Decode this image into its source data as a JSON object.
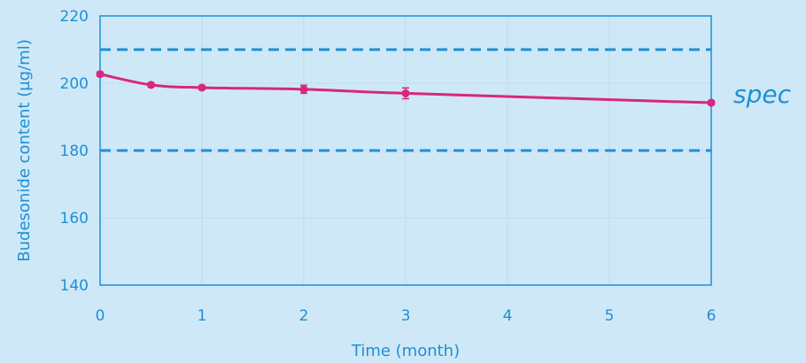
{
  "chart_data": {
    "type": "line",
    "title": "",
    "xlabel": "Time (month)",
    "ylabel": "Budesonide content (µg/ml)",
    "xlim": [
      0,
      6
    ],
    "ylim": [
      140,
      220
    ],
    "x_ticks": [
      0,
      1,
      2,
      3,
      4,
      5,
      6
    ],
    "y_ticks": [
      140,
      160,
      180,
      200,
      220
    ],
    "grid": true,
    "series": [
      {
        "name": "",
        "x": [
          0,
          0.5,
          1,
          2,
          3,
          6
        ],
        "y": [
          202.7,
          199.5,
          198.7,
          198.2,
          197.0,
          194.2
        ],
        "error": [
          0.6,
          0.6,
          0.6,
          1.2,
          1.6,
          0.6
        ]
      }
    ],
    "spec_limits": {
      "upper": 210,
      "lower": 180,
      "label": "spec"
    },
    "colors": {
      "background": "#cfe8f7",
      "axis": "#1e8fd6",
      "line": "#d6287d",
      "spec": "#1e8fd6",
      "grid": "#bcdcec"
    }
  }
}
